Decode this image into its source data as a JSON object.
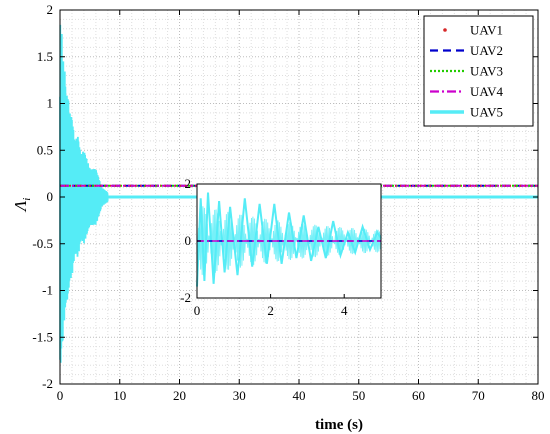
{
  "chart_data": [
    {
      "type": "line",
      "xlabel": "time (s)",
      "ylabel": "Λi",
      "ylabel_main": "Λ",
      "ylabel_sub": "i",
      "xlim": [
        0,
        80
      ],
      "ylim": [
        -2,
        2
      ],
      "xticks": [
        "0",
        "10",
        "20",
        "30",
        "40",
        "50",
        "60",
        "70",
        "80"
      ],
      "yticks": [
        "-2",
        "-1.5",
        "-1",
        "-0.5",
        "0",
        "0.5",
        "1",
        "1.5",
        "2"
      ],
      "grid": true,
      "legend_position": "top-right",
      "series": [
        {
          "name": "UAV1",
          "color": "#d62728",
          "style": "dotted-markers",
          "x": [
            0,
            80
          ],
          "y": [
            0.12,
            0.12
          ]
        },
        {
          "name": "UAV2",
          "color": "#0000cc",
          "style": "dashed",
          "x": [
            0,
            80
          ],
          "y": [
            0.12,
            0.12
          ]
        },
        {
          "name": "UAV3",
          "color": "#22cc00",
          "style": "dotted",
          "x": [
            0,
            80
          ],
          "y": [
            0.12,
            0.12
          ]
        },
        {
          "name": "UAV4",
          "color": "#cc00cc",
          "style": "dash-dot",
          "x": [
            0,
            80
          ],
          "y": [
            0.12,
            0.12
          ]
        },
        {
          "name": "UAV5",
          "color": "#55ecf6",
          "style": "solid",
          "x": [
            0,
            0.1,
            0.2,
            0.3,
            0.4,
            0.5,
            0.6,
            0.8,
            1.0,
            1.3,
            1.6,
            2.0,
            2.5,
            3.0,
            3.5,
            4.0,
            5.0,
            6.0,
            7.0,
            8.0,
            10,
            15,
            20,
            80
          ],
          "y": [
            -1.95,
            1.8,
            -1.7,
            1.75,
            -1.5,
            1.6,
            -1.3,
            1.35,
            -1.1,
            1.1,
            -0.9,
            0.85,
            -0.6,
            0.65,
            -0.45,
            0.5,
            -0.3,
            0.3,
            -0.1,
            0.05,
            -0.02,
            0.0,
            0.0,
            0.0
          ]
        }
      ]
    },
    {
      "type": "line",
      "role": "inset",
      "xlim": [
        0,
        5
      ],
      "ylim": [
        -2,
        2
      ],
      "xticks": [
        "0",
        "2",
        "4"
      ],
      "yticks": [
        "-2",
        "0",
        "2"
      ],
      "series": [
        {
          "name": "UAV5",
          "color": "#55ecf6",
          "x": [
            0,
            0.1,
            0.2,
            0.3,
            0.45,
            0.6,
            0.75,
            0.9,
            1.1,
            1.3,
            1.5,
            1.7,
            1.9,
            2.1,
            2.3,
            2.5,
            2.7,
            2.9,
            3.1,
            3.3,
            3.5,
            3.7,
            3.9,
            4.1,
            4.3,
            4.5,
            4.7,
            4.9,
            5.0
          ],
          "y": [
            -1.6,
            1.5,
            -1.4,
            1.7,
            -1.5,
            1.4,
            -1.1,
            1.2,
            -1.2,
            1.5,
            -0.9,
            1.3,
            -0.8,
            1.3,
            -0.8,
            1.0,
            -0.6,
            0.9,
            -0.7,
            0.5,
            -0.6,
            0.7,
            -0.5,
            0.3,
            -0.4,
            0.5,
            -0.3,
            0.3,
            0.1
          ]
        },
        {
          "name": "UAV2",
          "color": "#0000cc",
          "x": [
            0,
            5
          ],
          "y": [
            0,
            0
          ]
        },
        {
          "name": "UAV4",
          "color": "#cc00cc",
          "x": [
            0,
            5
          ],
          "y": [
            0,
            0
          ]
        }
      ]
    }
  ]
}
